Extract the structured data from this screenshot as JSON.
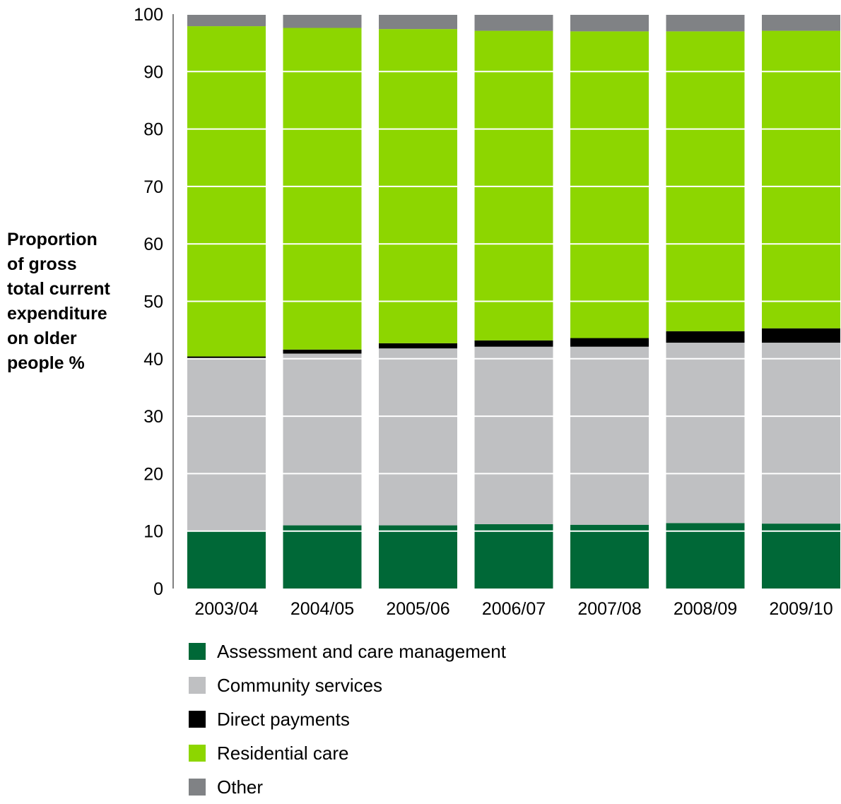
{
  "chart_data": {
    "type": "bar",
    "stacked": true,
    "title": "",
    "xlabel": "",
    "ylabel": "Proportion\nof gross\ntotal current\nexpenditure\non older\npeople %",
    "ylim": [
      0,
      100
    ],
    "yticks": [
      0,
      10,
      20,
      30,
      40,
      50,
      60,
      70,
      80,
      90,
      100
    ],
    "grid": "horizontal white lines over bars",
    "legend_position": "bottom",
    "categories": [
      "2003/04",
      "2004/05",
      "2005/06",
      "2006/07",
      "2007/08",
      "2008/09",
      "2009/10"
    ],
    "series": [
      {
        "name": "Assessment and care management",
        "color": "#006837",
        "values": [
          10.0,
          11.0,
          11.0,
          11.2,
          11.1,
          11.4,
          11.3
        ]
      },
      {
        "name": "Community services",
        "color": "#bfc0c2",
        "values": [
          30.0,
          29.9,
          30.8,
          30.9,
          31.0,
          31.4,
          31.5
        ]
      },
      {
        "name": "Direct payments",
        "color": "#000000",
        "values": [
          0.4,
          0.7,
          0.9,
          1.1,
          1.5,
          2.0,
          2.5
        ]
      },
      {
        "name": "Residential care",
        "color": "#8dd600",
        "values": [
          57.5,
          56.0,
          54.7,
          53.9,
          53.4,
          52.2,
          51.8
        ]
      },
      {
        "name": "Other",
        "color": "#808285",
        "values": [
          2.1,
          2.4,
          2.6,
          2.9,
          3.0,
          3.0,
          2.9
        ]
      }
    ]
  }
}
